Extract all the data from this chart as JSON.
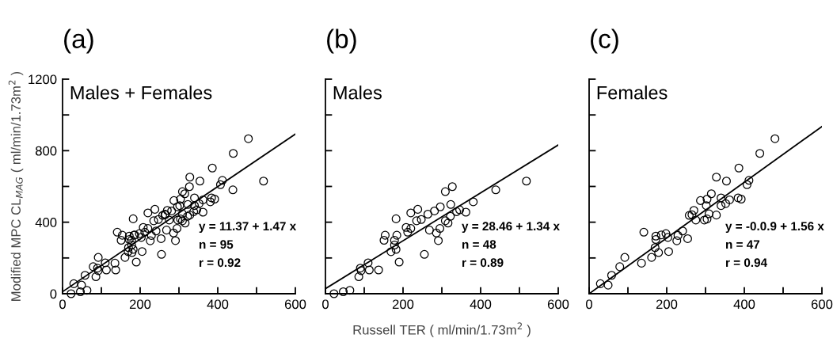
{
  "chart_data": [
    {
      "type": "scatter",
      "title": "(a)",
      "ylabel": "Modified MPC CL$_{MAG}$ ( ml/min/1.73m$^{2}$ )",
      "xlim": [
        0,
        600
      ],
      "xticks": [
        0,
        {
          "value": 100,
          "label": null
        },
        200,
        {
          "value": 300,
          "label": null
        },
        400,
        {
          "value": 500,
          "label": null
        },
        600
      ],
      "ylim": [
        0,
        1200
      ],
      "yticks": [
        0,
        {
          "value": 200,
          "label": null
        },
        400,
        {
          "value": 600,
          "label": null
        },
        800,
        {
          "value": 1000,
          "label": null
        },
        1200
      ],
      "annotations": [
        "Males + Females",
        "y = 11.37 + 1.47 x",
        "n = 95",
        "r = 0.92"
      ],
      "series": [
        {
          "marker": "circle",
          "color": "#000000",
          "x": [
            22,
            46,
            63,
            86,
            90,
            92,
            110,
            113,
            137,
            151,
            154,
            169,
            178,
            178,
            182,
            184,
            182,
            190,
            208,
            212,
            220,
            220,
            235,
            238,
            247,
            255,
            264,
            268,
            281,
            286,
            291,
            295,
            296,
            309,
            309,
            316,
            322,
            323,
            327,
            338,
            346,
            362,
            381,
            439,
            518,
            29,
            49,
            58,
            79,
            92,
            135,
            141,
            161,
            170,
            172,
            172,
            179,
            186,
            198,
            203,
            205,
            226,
            229,
            241,
            254,
            258,
            265,
            270,
            275,
            287,
            297,
            304,
            304,
            309,
            302,
            315,
            328,
            328,
            340,
            340,
            352,
            354,
            362,
            384,
            386,
            392,
            407,
            412,
            440,
            479
          ],
          "values": [
            0,
            11,
            19,
            95,
            143,
            129,
            173,
            133,
            133,
            299,
            327,
            235,
            272,
            299,
            419,
            327,
            248,
            177,
            371,
            344,
            365,
            452,
            408,
            472,
            415,
            220,
            445,
            356,
            463,
            340,
            297,
            365,
            486,
            571,
            408,
            395,
            433,
            499,
            599,
            459,
            469,
            456,
            514,
            581,
            630,
            56,
            48,
            103,
            151,
            203,
            171,
            344,
            203,
            258,
            322,
            303,
            230,
            329,
            336,
            315,
            236,
            296,
            326,
            351,
            308,
            438,
            442,
            466,
            412,
            521,
            412,
            418,
            529,
            447,
            493,
            559,
            440,
            652,
            493,
            536,
            504,
            630,
            525,
            536,
            703,
            529,
            610,
            634,
            785,
            867
          ]
        },
        {
          "type": "line",
          "color": "#000000",
          "x": [
            0,
            600
          ],
          "values": [
            11,
            893
          ]
        }
      ]
    },
    {
      "type": "scatter",
      "title": "(b)",
      "xlabel": "Russell TER ( ml/min/1.73m$^{2}$ )",
      "xlim": [
        0,
        600
      ],
      "xticks": [
        0,
        {
          "value": 100,
          "label": null
        },
        200,
        {
          "value": 300,
          "label": null
        },
        400,
        {
          "value": 500,
          "label": null
        },
        600
      ],
      "ylim": [
        0,
        1200
      ],
      "yticks": [
        0,
        {
          "value": 200,
          "label": null
        },
        400,
        {
          "value": 600,
          "label": null
        },
        800,
        {
          "value": 1000,
          "label": null
        },
        1200
      ],
      "tick_labels": "x",
      "annotations": [
        "Males",
        "y = 28.46 + 1.34 x",
        "n = 48",
        "r = 0.89"
      ],
      "series": [
        {
          "marker": "circle",
          "color": "#000000",
          "x": [
            22,
            46,
            63,
            86,
            90,
            92,
            110,
            113,
            137,
            151,
            154,
            169,
            178,
            178,
            182,
            184,
            182,
            190,
            208,
            212,
            220,
            220,
            235,
            238,
            247,
            255,
            264,
            268,
            281,
            286,
            291,
            295,
            296,
            309,
            309,
            316,
            322,
            323,
            327,
            338,
            346,
            362,
            381,
            439,
            518
          ],
          "values": [
            0,
            11,
            19,
            95,
            143,
            129,
            173,
            133,
            133,
            299,
            327,
            235,
            272,
            299,
            419,
            327,
            248,
            177,
            371,
            344,
            365,
            452,
            408,
            472,
            415,
            220,
            445,
            356,
            463,
            340,
            297,
            365,
            486,
            571,
            408,
            395,
            433,
            499,
            599,
            459,
            469,
            456,
            514,
            581,
            630
          ]
        },
        {
          "type": "line",
          "color": "#000000",
          "x": [
            0,
            600
          ],
          "values": [
            28,
            832
          ]
        }
      ]
    },
    {
      "type": "scatter",
      "title": "(c)",
      "xlim": [
        0,
        600
      ],
      "xticks": [
        0,
        {
          "value": 100,
          "label": null
        },
        200,
        {
          "value": 300,
          "label": null
        },
        400,
        {
          "value": 500,
          "label": null
        },
        600
      ],
      "ylim": [
        0,
        1200
      ],
      "yticks": [
        0,
        {
          "value": 200,
          "label": null
        },
        400,
        {
          "value": 600,
          "label": null
        },
        800,
        {
          "value": 1000,
          "label": null
        },
        1200
      ],
      "tick_labels": "x",
      "annotations": [
        "Females",
        "y = -0.0.9 + 1.56 x",
        "n = 47",
        "r = 0.94"
      ],
      "series": [
        {
          "marker": "circle",
          "color": "#000000",
          "x": [
            29,
            49,
            58,
            79,
            92,
            135,
            141,
            161,
            170,
            172,
            172,
            179,
            186,
            198,
            203,
            205,
            226,
            229,
            241,
            254,
            258,
            265,
            270,
            275,
            287,
            297,
            304,
            304,
            309,
            302,
            315,
            328,
            328,
            340,
            340,
            352,
            354,
            362,
            384,
            386,
            392,
            407,
            412,
            440,
            479
          ],
          "values": [
            56,
            48,
            103,
            151,
            203,
            171,
            344,
            203,
            258,
            322,
            303,
            230,
            329,
            336,
            315,
            236,
            296,
            326,
            351,
            308,
            438,
            442,
            466,
            412,
            521,
            412,
            418,
            529,
            447,
            493,
            559,
            440,
            652,
            493,
            536,
            504,
            630,
            525,
            536,
            703,
            529,
            610,
            634,
            785,
            867
          ]
        },
        {
          "type": "line",
          "color": "#000000",
          "x": [
            0,
            600
          ],
          "values": [
            0,
            935
          ]
        }
      ]
    }
  ]
}
